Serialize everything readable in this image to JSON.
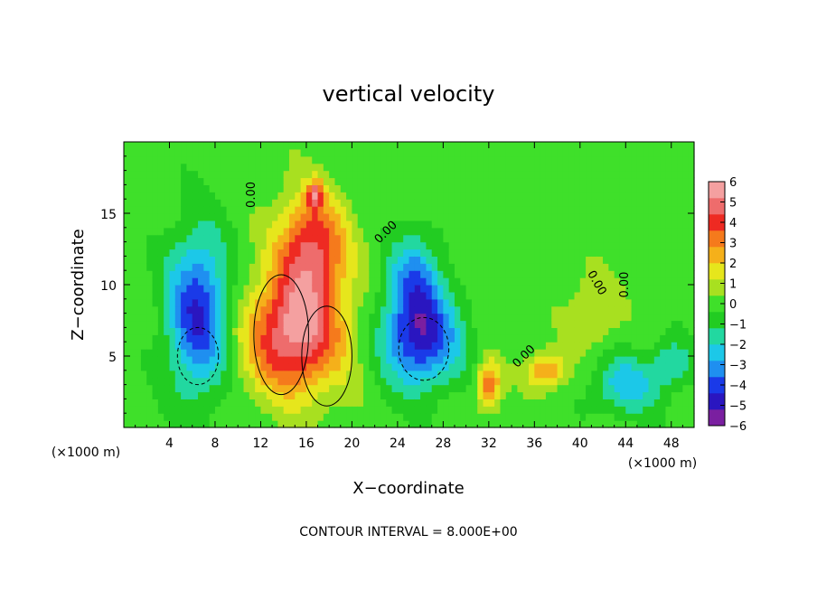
{
  "chart_data": {
    "type": "heatmap",
    "title": "vertical velocity",
    "xlabel": "X−coordinate",
    "ylabel": "Z−coordinate",
    "x_unit_left": "(×1000 m)",
    "x_unit_right": "(×1000 m)",
    "footer": "CONTOUR INTERVAL = 8.000E+00",
    "xlim": [
      0,
      50
    ],
    "ylim": [
      0,
      20
    ],
    "x_ticks": [
      4,
      8,
      12,
      16,
      20,
      24,
      28,
      32,
      36,
      40,
      44,
      48
    ],
    "y_ticks": [
      5,
      10,
      15
    ],
    "colorbar": {
      "min": -6,
      "max": 6,
      "ticks": [
        6,
        5,
        4,
        3,
        2,
        1,
        0,
        -1,
        -2,
        -3,
        -4,
        -5,
        -6
      ],
      "tick_labels": [
        "6",
        "5",
        "4",
        "3",
        "2",
        "1",
        "0",
        "−1",
        "−2",
        "−3",
        "−4",
        "−5",
        "−6"
      ],
      "colors": [
        "#7a1fa0",
        "#2a16c0",
        "#1a3ae8",
        "#1f8ff0",
        "#1cc8e8",
        "#22d8a0",
        "#22cc22",
        "#3fe02a",
        "#a8e020",
        "#e6e61c",
        "#f5b01a",
        "#f57a1c",
        "#ee2a22",
        "#ee6c6c",
        "#f4a0a0"
      ]
    },
    "contour_labels": [
      {
        "text": "0.00",
        "x": 11.5,
        "y": 16.3,
        "rotate": -90
      },
      {
        "text": "0.00",
        "x": 23.2,
        "y": 13.5,
        "rotate": -45
      },
      {
        "text": "0.00",
        "x": 35.3,
        "y": 4.8,
        "rotate": -45
      },
      {
        "text": "0.00",
        "x": 41.2,
        "y": 10.0,
        "rotate": 60
      },
      {
        "text": "0.00",
        "x": 44.2,
        "y": 10.0,
        "rotate": -90
      }
    ],
    "features": [
      {
        "kind": "updraft",
        "x": 15.0,
        "z": 6.5,
        "rx": 5.0,
        "rz": 4.8,
        "w": 5.5
      },
      {
        "kind": "updraft",
        "x": 16.5,
        "z": 12.5,
        "rx": 3.5,
        "rz": 4.5,
        "w": 4.5
      },
      {
        "kind": "updraft",
        "x": 16.8,
        "z": 16.3,
        "rx": 0.8,
        "rz": 1.2,
        "w": 3.5
      },
      {
        "kind": "downdraft",
        "x": 6.5,
        "z": 8.0,
        "rx": 3.2,
        "rz": 6.5,
        "w": -4.5
      },
      {
        "kind": "downdraft",
        "x": 26.0,
        "z": 6.5,
        "rx": 4.0,
        "rz": 4.2,
        "w": -5.0
      },
      {
        "kind": "downdraft",
        "x": 25.5,
        "z": 11.0,
        "rx": 2.5,
        "rz": 3.5,
        "w": -2.5
      },
      {
        "kind": "downdraft",
        "x": 44.0,
        "z": 3.0,
        "rx": 3.5,
        "rz": 2.5,
        "w": -2.5
      },
      {
        "kind": "downdraft",
        "x": 48.0,
        "z": 4.5,
        "rx": 2.0,
        "rz": 2.0,
        "w": -2.0
      },
      {
        "kind": "updraft",
        "x": 32.0,
        "z": 3.0,
        "rx": 1.2,
        "rz": 2.0,
        "w": 3.5
      },
      {
        "kind": "updraft",
        "x": 37.0,
        "z": 4.0,
        "rx": 2.0,
        "rz": 1.5,
        "w": 3.0
      },
      {
        "kind": "updraft",
        "x": 41.0,
        "z": 8.0,
        "rx": 2.5,
        "rz": 3.0,
        "w": 1.5
      }
    ],
    "grid": false,
    "legend": "right"
  }
}
